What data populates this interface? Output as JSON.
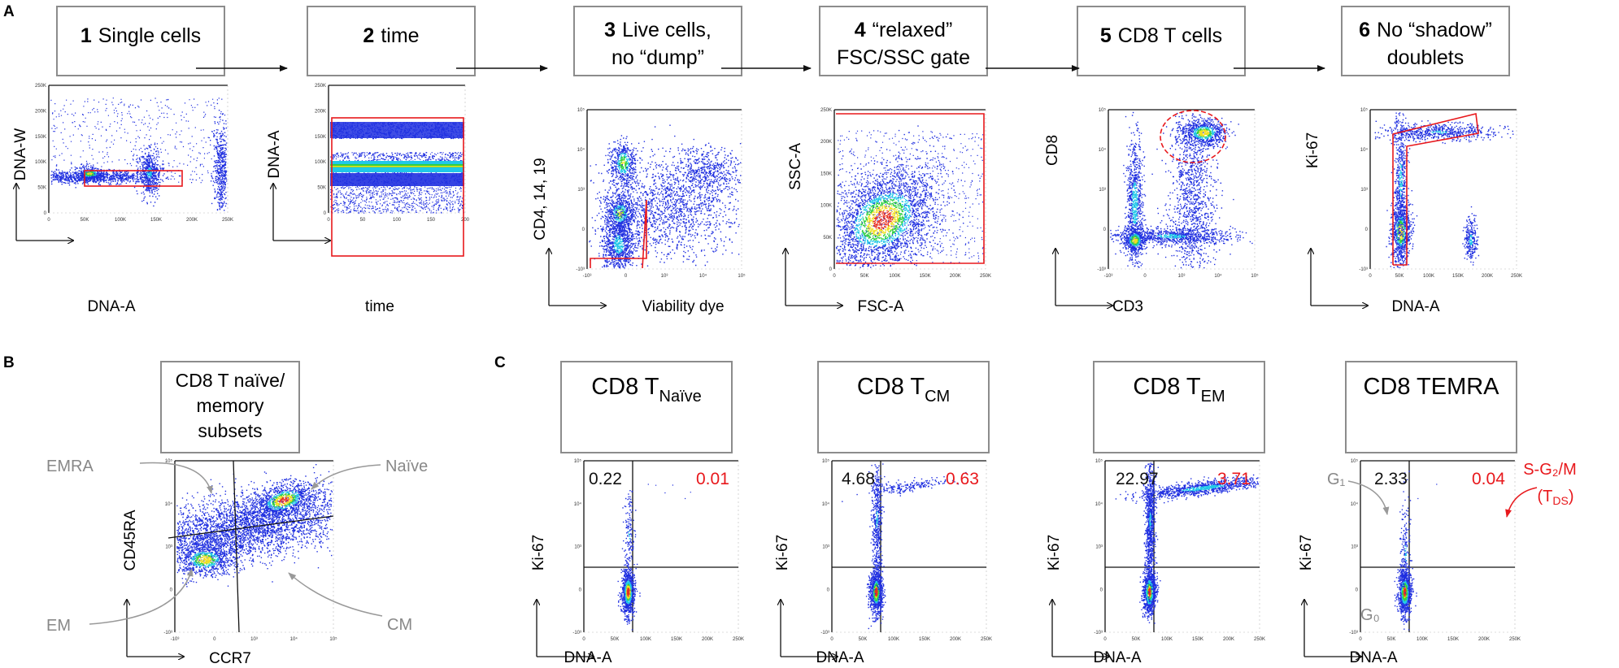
{
  "panel_labels": {
    "a": "A",
    "b": "B",
    "c": "C"
  },
  "row_a": {
    "steps": [
      {
        "num": "1",
        "title_lines": [
          "Single cells"
        ],
        "ylabel": "DNA-W",
        "xlabel": "DNA-A"
      },
      {
        "num": "2",
        "title_lines": [
          "time"
        ],
        "ylabel": "DNA-A",
        "xlabel": "time"
      },
      {
        "num": "3",
        "title_lines": [
          "Live cells,",
          "no “dump”"
        ],
        "ylabel": "CD4, 14, 19",
        "xlabel": "Viability dye"
      },
      {
        "num": "4",
        "title_lines": [
          "“relaxed”",
          "FSC/SSC gate"
        ],
        "ylabel": "SSC-A",
        "xlabel": "FSC-A"
      },
      {
        "num": "5",
        "title_lines": [
          "CD8 T cells"
        ],
        "ylabel": "CD8",
        "xlabel": "CD3"
      },
      {
        "num": "6",
        "title_lines": [
          "No “shadow”",
          "doublets"
        ],
        "ylabel": "Ki-67",
        "xlabel": "DNA-A"
      }
    ],
    "linear_ticks_250k": [
      "0",
      "50K",
      "100K",
      "150K",
      "200K",
      "250K"
    ],
    "time_ticks": [
      "0",
      "50",
      "100",
      "150",
      "200"
    ],
    "log_ticks": [
      "-10³",
      "0",
      "10³",
      "10⁴",
      "10⁵"
    ]
  },
  "panel_b": {
    "title_lines": [
      "CD8 T naïve/",
      "memory",
      "subsets"
    ],
    "ylabel": "CD45RA",
    "xlabel": "CCR7",
    "subsets": {
      "emra": "EMRA",
      "naive": "Naïve",
      "em": "EM",
      "cm": "CM"
    }
  },
  "panel_c": {
    "plots": [
      {
        "title_main": "CD8 T",
        "title_sub": "Naïve",
        "left_value": "0.22",
        "right_value": "0.01",
        "ylabel": "Ki-67",
        "xlabel": "DNA-A"
      },
      {
        "title_main": "CD8 T",
        "title_sub": "CM",
        "left_value": "4.68",
        "right_value": "0.63",
        "ylabel": "Ki-67",
        "xlabel": "DNA-A"
      },
      {
        "title_main": "CD8 T",
        "title_sub": "EM",
        "left_value": "22.97",
        "right_value": "3.71",
        "ylabel": "Ki-67",
        "xlabel": "DNA-A"
      },
      {
        "title_main": "CD8 TEMRA",
        "title_sub": "",
        "left_value": "2.33",
        "right_value": "0.04",
        "ylabel": "Ki-67",
        "xlabel": "DNA-A"
      }
    ],
    "g1_label": "G₁",
    "g0_label": "G₀",
    "sg2m_label": "S-G₂/M",
    "tds_label": "(T",
    "tds_sub": "DS",
    "tds_close": ")"
  },
  "colors": {
    "red": "#e8181c",
    "gray_text": "#888888",
    "box_border": "#8c8c8c",
    "dot_blue": "#1f2fe0",
    "dot_cyan": "#20c8e8",
    "dot_green": "#30d040",
    "dot_yellow": "#f0e020",
    "dot_red": "#e83020"
  }
}
